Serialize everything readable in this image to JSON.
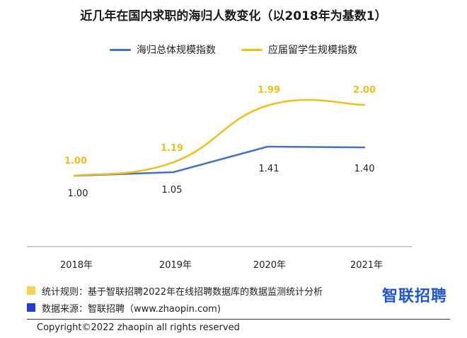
{
  "chart_data": {
    "type": "line",
    "title": "近几年在国内求职的海归人数变化（以2018年为基数1）",
    "categories": [
      "2018年",
      "2019年",
      "2020年",
      "2021年"
    ],
    "series": [
      {
        "name": "海归总体规模指数",
        "values": [
          1.0,
          1.05,
          1.41,
          1.4
        ],
        "labels": [
          "1.00",
          "1.05",
          "1.41",
          "1.40"
        ],
        "color": "#4472c4"
      },
      {
        "name": "应届留学生规模指数",
        "values": [
          1.0,
          1.19,
          1.99,
          2.0
        ],
        "labels": [
          "1.00",
          "1.19",
          "1.99",
          "2.00"
        ],
        "color": "#f2be1a"
      }
    ],
    "legend": "top-center",
    "grid": false
  },
  "notes": [
    {
      "text": "统计规则：基于智联招聘2022年在线招聘数据库的数据监测统计分析",
      "color": "#f5d25a"
    },
    {
      "text": "数据来源：智联招聘（www.zhaopin.com)",
      "color": "#1f3fd9"
    }
  ],
  "brand": "智联招聘",
  "copyright": "Copyright©2022 zhaopin all rights reserved"
}
